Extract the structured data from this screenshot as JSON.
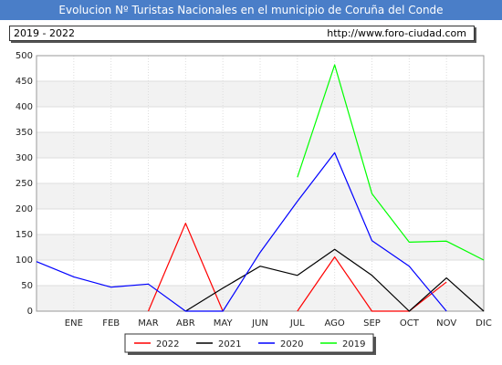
{
  "header": {
    "title": "Evolucion Nº Turistas Nacionales en el municipio de Coruña del Conde",
    "range": "2019 - 2022",
    "url": "http://www.foro-ciudad.com"
  },
  "chart_data": {
    "type": "line",
    "title": "Evolucion Nº Turistas Nacionales en el municipio de Coruña del Conde",
    "xlabel": "",
    "ylabel": "",
    "categories": [
      "",
      "ENE",
      "FEB",
      "MAR",
      "ABR",
      "MAY",
      "JUN",
      "JUL",
      "AGO",
      "SEP",
      "OCT",
      "NOV",
      "DIC"
    ],
    "ylim": [
      0,
      500
    ],
    "yticks": [
      0,
      50,
      100,
      150,
      200,
      250,
      300,
      350,
      400,
      450,
      500
    ],
    "grid": true,
    "legend_position": "bottom",
    "series": [
      {
        "name": "2022",
        "color": "#ff0000",
        "values": [
          null,
          null,
          null,
          0,
          172,
          0,
          null,
          0,
          106,
          0,
          0,
          57,
          null
        ]
      },
      {
        "name": "2021",
        "color": "#000000",
        "values": [
          null,
          null,
          null,
          null,
          0,
          45,
          88,
          70,
          121,
          70,
          0,
          65,
          0
        ]
      },
      {
        "name": "2020",
        "color": "#0000ff",
        "values": [
          97,
          67,
          47,
          53,
          0,
          0,
          115,
          215,
          310,
          138,
          88,
          0,
          null
        ]
      },
      {
        "name": "2019",
        "color": "#00ff00",
        "values": [
          null,
          null,
          null,
          null,
          null,
          null,
          null,
          262,
          482,
          230,
          135,
          137,
          100
        ]
      }
    ]
  }
}
